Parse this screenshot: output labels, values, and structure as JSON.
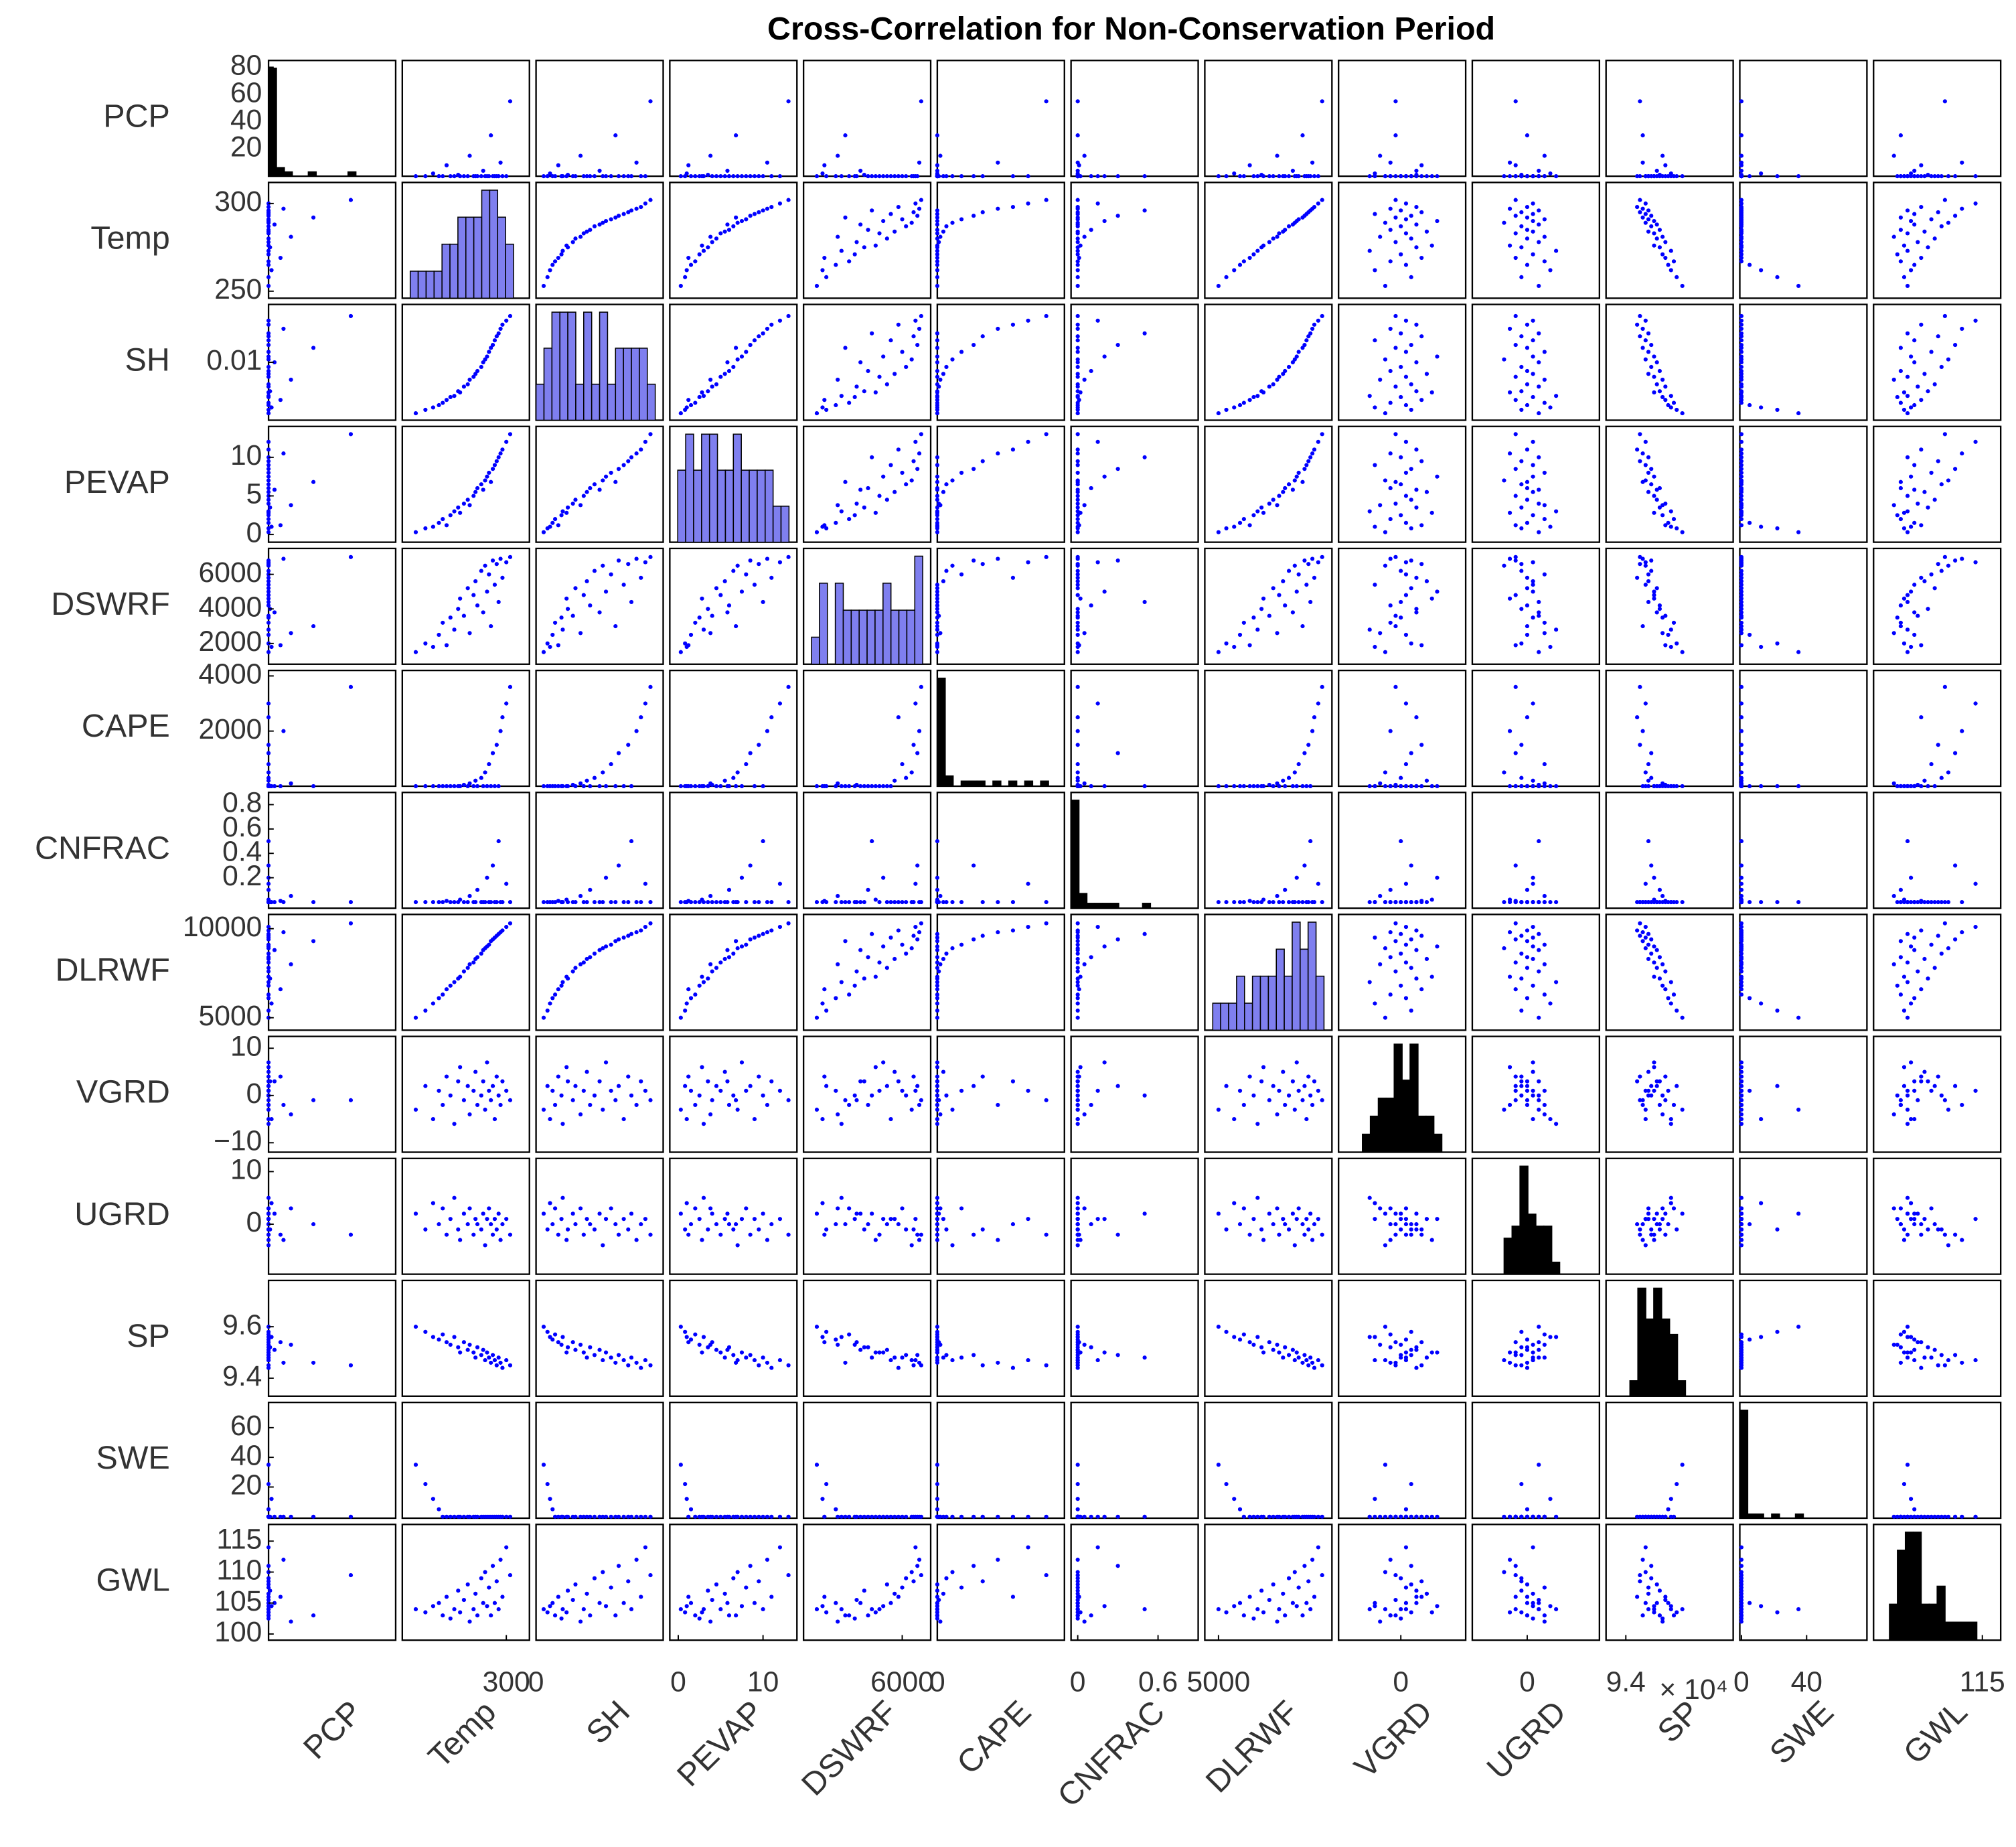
{
  "chart_data": {
    "type": "scatter_matrix",
    "title": "Cross-Correlation for Non-Conservation Period",
    "point_color": "#0000ff",
    "variables": [
      {
        "name": "PCP",
        "hist_color": "#000000",
        "lim": [
          0,
          85
        ],
        "yticks": [
          20,
          40,
          60,
          80
        ],
        "xticks": [],
        "values": [
          0,
          0,
          2,
          0,
          0,
          8,
          0,
          0,
          1,
          0,
          0,
          0,
          15,
          0,
          0,
          0,
          0,
          4,
          0,
          0,
          0,
          30,
          0,
          0,
          0,
          0,
          10,
          0,
          0,
          55
        ]
      },
      {
        "name": "Temp",
        "hist_color": "#7f7fef",
        "lim": [
          246,
          312
        ],
        "yticks": [
          250,
          300
        ],
        "xticks": [
          300
        ],
        "values": [
          253,
          258,
          262,
          265,
          267,
          269,
          271,
          273,
          275,
          276,
          278,
          280,
          281,
          283,
          284,
          285,
          287,
          288,
          289,
          290,
          291,
          292,
          293,
          294,
          295,
          296,
          297,
          298,
          300,
          302
        ]
      },
      {
        "name": "SH",
        "hist_color": "#7f7fef",
        "lim": [
          0,
          0.02
        ],
        "yticks": [
          0.01
        ],
        "xticks": [
          0
        ],
        "values": [
          0.0012,
          0.0018,
          0.0022,
          0.0026,
          0.003,
          0.0035,
          0.004,
          0.0042,
          0.005,
          0.0048,
          0.0058,
          0.0062,
          0.007,
          0.0075,
          0.008,
          0.0085,
          0.0092,
          0.01,
          0.0105,
          0.011,
          0.0118,
          0.0125,
          0.013,
          0.0138,
          0.0145,
          0.015,
          0.0158,
          0.0165,
          0.0172,
          0.018
        ]
      },
      {
        "name": "PEVAP",
        "hist_color": "#7f7fef",
        "lim": [
          -1,
          14
        ],
        "yticks": [
          0,
          5,
          10
        ],
        "xticks": [
          0,
          10
        ],
        "values": [
          0.3,
          0.8,
          1.0,
          1.5,
          2.0,
          1.2,
          2.5,
          3.0,
          3.5,
          2.8,
          4.0,
          4.5,
          3.8,
          5.0,
          5.5,
          6.0,
          6.5,
          5.8,
          7.0,
          7.5,
          8.0,
          6.8,
          8.5,
          9.0,
          9.5,
          10.0,
          10.5,
          11.0,
          12.0,
          13.0
        ]
      },
      {
        "name": "DSWRF",
        "hist_color": "#7f7fef",
        "lim": [
          800,
          7500
        ],
        "yticks": [
          2000,
          4000,
          6000
        ],
        "xticks": [
          6000
        ],
        "values": [
          1500,
          2000,
          1800,
          2500,
          3200,
          1900,
          3500,
          2800,
          4000,
          4600,
          3600,
          5200,
          2600,
          4800,
          5600,
          4200,
          6200,
          3800,
          6500,
          5000,
          6000,
          3000,
          6800,
          5400,
          6600,
          4400,
          6900,
          5800,
          6700,
          7000
        ]
      },
      {
        "name": "CAPE",
        "hist_color": "#000000",
        "lim": [
          0,
          4200
        ],
        "yticks": [
          2000,
          4000
        ],
        "xticks": [
          0
        ],
        "values": [
          0,
          0,
          0,
          0,
          0,
          0,
          0,
          0,
          0,
          0,
          50,
          0,
          100,
          0,
          200,
          0,
          300,
          0,
          500,
          0,
          800,
          0,
          1200,
          0,
          1500,
          0,
          2000,
          2500,
          3000,
          3600
        ]
      },
      {
        "name": "CNFRAC",
        "hist_color": "#000000",
        "lim": [
          -0.05,
          0.9
        ],
        "yticks": [
          0.2,
          0.4,
          0.6,
          0.8
        ],
        "xticks": [
          0,
          0.6
        ],
        "values": [
          0,
          0,
          0,
          0,
          0,
          0.01,
          0,
          0,
          0,
          0.02,
          0,
          0,
          0.05,
          0,
          0,
          0.1,
          0,
          0,
          0,
          0.2,
          0,
          0,
          0.3,
          0,
          0,
          0.5,
          0,
          0,
          0.15,
          0
        ]
      },
      {
        "name": "DLRWF",
        "hist_color": "#7f7fef",
        "lim": [
          4300,
          10800
        ],
        "yticks": [
          5000,
          10000
        ],
        "xticks": [
          5000
        ],
        "values": [
          5000,
          5400,
          5800,
          6100,
          6300,
          6600,
          6800,
          7000,
          7200,
          7300,
          7600,
          7800,
          8000,
          8100,
          8300,
          8400,
          8600,
          8800,
          8900,
          9000,
          9100,
          9300,
          9400,
          9500,
          9600,
          9700,
          9800,
          9900,
          10100,
          10300
        ]
      },
      {
        "name": "VGRD",
        "hist_color": "#000000",
        "lim": [
          -12,
          12.5
        ],
        "yticks": [
          {
            "value": -10,
            "label": "−10"
          },
          0,
          10
        ],
        "xticks": [
          0
        ],
        "values": [
          -3,
          2,
          -5,
          1,
          -2,
          4,
          0,
          -6,
          3,
          6,
          -1,
          2,
          -4,
          1,
          5,
          -2,
          0,
          3,
          -3,
          7,
          1,
          -1,
          2,
          -5,
          4,
          0,
          -2,
          3,
          1,
          -1
        ]
      },
      {
        "name": "UGRD",
        "hist_color": "#000000",
        "lim": [
          -9.5,
          12.5
        ],
        "yticks": [
          0,
          10
        ],
        "xticks": [
          0
        ],
        "values": [
          2,
          -1,
          4,
          0,
          3,
          -2,
          1,
          5,
          -1,
          -3,
          2,
          0,
          3,
          -2,
          1,
          0,
          -1,
          2,
          -4,
          1,
          3,
          0,
          -2,
          1,
          -1,
          2,
          -3,
          0,
          1,
          -2
        ]
      },
      {
        "name": "SP",
        "hist_color": "#000000",
        "lim": [
          93300,
          97800
        ],
        "yticks": [
          {
            "value": 94000,
            "label": "9.4"
          },
          {
            "value": 96000,
            "label": "9.6"
          }
        ],
        "xticks": [
          {
            "value": 94000,
            "label": "9.4"
          }
        ],
        "exponent_label": "× 10⁴",
        "values": [
          96000,
          95800,
          95600,
          95500,
          95700,
          95400,
          95300,
          95600,
          95200,
          95000,
          95400,
          95100,
          95300,
          95000,
          94800,
          95200,
          94900,
          95100,
          94700,
          95000,
          94800,
          94600,
          94900,
          94700,
          94500,
          94800,
          94600,
          94400,
          94700,
          94500
        ]
      },
      {
        "name": "SWE",
        "hist_color": "#000000",
        "lim": [
          -1,
          77
        ],
        "yticks": [
          20,
          40,
          60
        ],
        "xticks": [
          0,
          40
        ],
        "values": [
          35,
          22,
          12,
          5,
          0,
          0,
          0,
          0,
          0,
          0,
          0,
          0,
          0,
          0,
          0,
          0,
          0,
          0,
          0,
          0,
          0,
          0,
          0,
          0,
          0,
          0,
          0,
          0,
          0,
          0
        ]
      },
      {
        "name": "GWL",
        "hist_color": "#000000",
        "lim": [
          99,
          117.7
        ],
        "yticks": [
          100,
          105,
          110,
          115
        ],
        "xticks": [
          115
        ],
        "values": [
          104,
          103.5,
          104.5,
          105,
          103,
          106,
          102.5,
          104,
          107,
          103.5,
          105.5,
          108,
          102,
          104,
          106.5,
          103,
          109,
          105,
          110,
          104.5,
          107.5,
          103,
          111,
          105,
          108.5,
          104,
          112,
          106,
          114,
          109.5
        ]
      }
    ]
  }
}
